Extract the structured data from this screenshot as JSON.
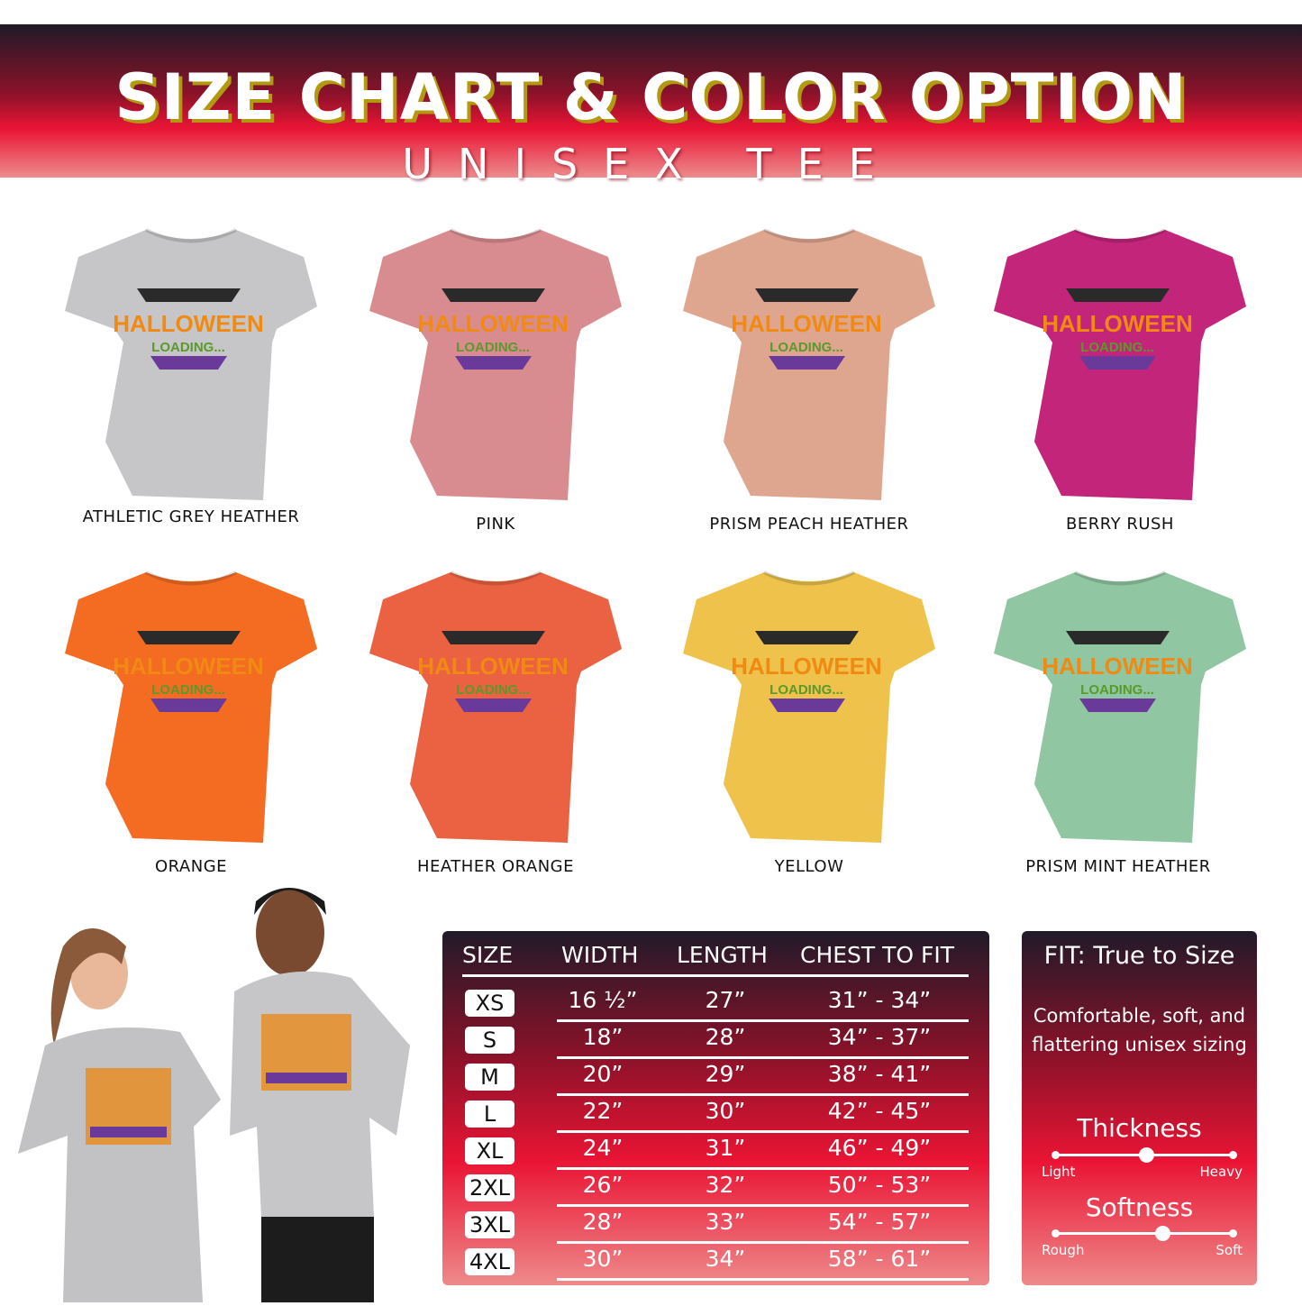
{
  "header": {
    "title": "SIZE CHART & COLOR OPTION",
    "subtitle": "UNISEX TEE"
  },
  "colors": [
    {
      "name": "ATHLETIC GREY HEATHER",
      "hex": "#c6c6c8"
    },
    {
      "name": "PINK",
      "hex": "#d98c90"
    },
    {
      "name": "PRISM PEACH HEATHER",
      "hex": "#dfa68f"
    },
    {
      "name": "BERRY RUSH",
      "hex": "#c22579"
    },
    {
      "name": "ORANGE",
      "hex": "#f46b22"
    },
    {
      "name": "HEATHER ORANGE",
      "hex": "#ea6241"
    },
    {
      "name": "YELLOW",
      "hex": "#eec24b"
    },
    {
      "name": "PRISM MINT HEATHER",
      "hex": "#90c6a1"
    }
  ],
  "design": {
    "line1": "HALLOWEEN",
    "line2": "LOADING..."
  },
  "size_table": {
    "headers": [
      "SIZE",
      "WIDTH",
      "LENGTH",
      "CHEST TO FIT"
    ],
    "rows": [
      {
        "size": "XS",
        "width": "16 ½”",
        "length": "27”",
        "chest": "31” - 34”"
      },
      {
        "size": "S",
        "width": "18”",
        "length": "28”",
        "chest": "34” - 37”"
      },
      {
        "size": "M",
        "width": "20”",
        "length": "29”",
        "chest": "38” - 41”"
      },
      {
        "size": "L",
        "width": "22”",
        "length": "30”",
        "chest": "42” - 45”"
      },
      {
        "size": "XL",
        "width": "24”",
        "length": "31”",
        "chest": "46” - 49”"
      },
      {
        "size": "2XL",
        "width": "26”",
        "length": "32”",
        "chest": "50” - 53”"
      },
      {
        "size": "3XL",
        "width": "28”",
        "length": "33”",
        "chest": "54” - 57”"
      },
      {
        "size": "4XL",
        "width": "30”",
        "length": "34”",
        "chest": "58” - 61”"
      }
    ]
  },
  "fit": {
    "title": "FIT: True to Size",
    "description": "Comfortable, soft, and flattering unisex sizing",
    "scales": [
      {
        "title": "Thickness",
        "min": "Light",
        "max": "Heavy",
        "level": 0.51
      },
      {
        "title": "Softness",
        "min": "Rough",
        "max": "Soft",
        "level": 0.6
      }
    ]
  }
}
